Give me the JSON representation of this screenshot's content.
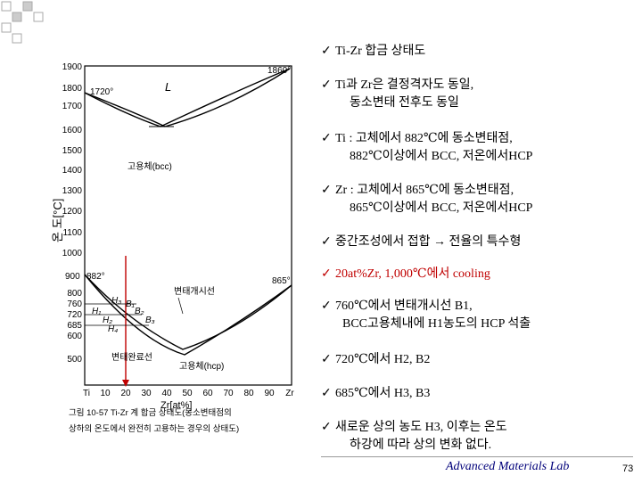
{
  "diagram": {
    "y_axis_label": "온 도[°C]",
    "y_ticks": [
      "1900",
      "1800",
      "1700",
      "1600",
      "1500",
      "1400",
      "1300",
      "1200",
      "1100",
      "1000",
      "900",
      "800",
      "760",
      "720",
      "685",
      "600",
      "500"
    ],
    "x_axis_label": "Zr[at%]",
    "x_ticks": [
      "Ti",
      "10",
      "20",
      "30",
      "40",
      "50",
      "60",
      "70",
      "80",
      "90",
      "Zr"
    ],
    "label_L": "L",
    "label_bcc": "고용체(bcc)",
    "label_hcp": "고용체(hcp)",
    "label_transform_start": "변태개시선",
    "label_transform_end": "변태완료선",
    "t_1720": "1720°",
    "t_1860": "1860°",
    "t_882": "882°",
    "t_865": "865°",
    "t_900": "900",
    "pt_B1": "B₁",
    "pt_B2": "B₂",
    "pt_B3": "B₃",
    "pt_H1": "H₁",
    "pt_H2": "H₂",
    "pt_H3": "H₃",
    "pt_H4": "H₄",
    "caption_line1": "그림 10-57  Ti-Zr 계 합금 상태도(동소변태점의",
    "caption_line2": "상하의 온도에서 완전히 고용하는 경우의 상태도)"
  },
  "bullets": [
    {
      "line1": "Ti-Zr 합금 상태도",
      "line2": ""
    },
    {
      "line1": "Ti과 Zr은 결정격자도 동일,",
      "line2": "동소변태 전후도 동일"
    },
    {
      "line1": "Ti : 고체에서 882℃에 동소변태점,",
      "line2": "882℃이상에서 BCC, 저온에서HCP"
    },
    {
      "line1": "Zr : 고체에서 865℃에 동소변태점,",
      "line2": "865℃이상에서 BCC, 저온에서HCP"
    },
    {
      "line1": "중간조성에서 접합 → 전율의 특수형",
      "line2": ""
    },
    {
      "line1": "20at%Zr,  1,000℃에서 cooling",
      "line2": ""
    },
    {
      "line1": "760℃에서  변태개시선  B1,",
      "line2": "BCC고용체내에 H1농도의 HCP 석출"
    },
    {
      "line1": "720℃에서  H2, B2",
      "line2": ""
    },
    {
      "line1": "685℃에서  H3, B3",
      "line2": ""
    },
    {
      "line1": "새로운 상의 농도 H3,  이후는 온도",
      "line2": "하강에 따라 상의 변화 없다."
    }
  ],
  "check_mark": "✓",
  "footer": {
    "lab": "Advanced Materials Lab",
    "page": "73"
  },
  "colors": {
    "highlight_red": "#c00000",
    "lab_blue": "#00007a"
  }
}
